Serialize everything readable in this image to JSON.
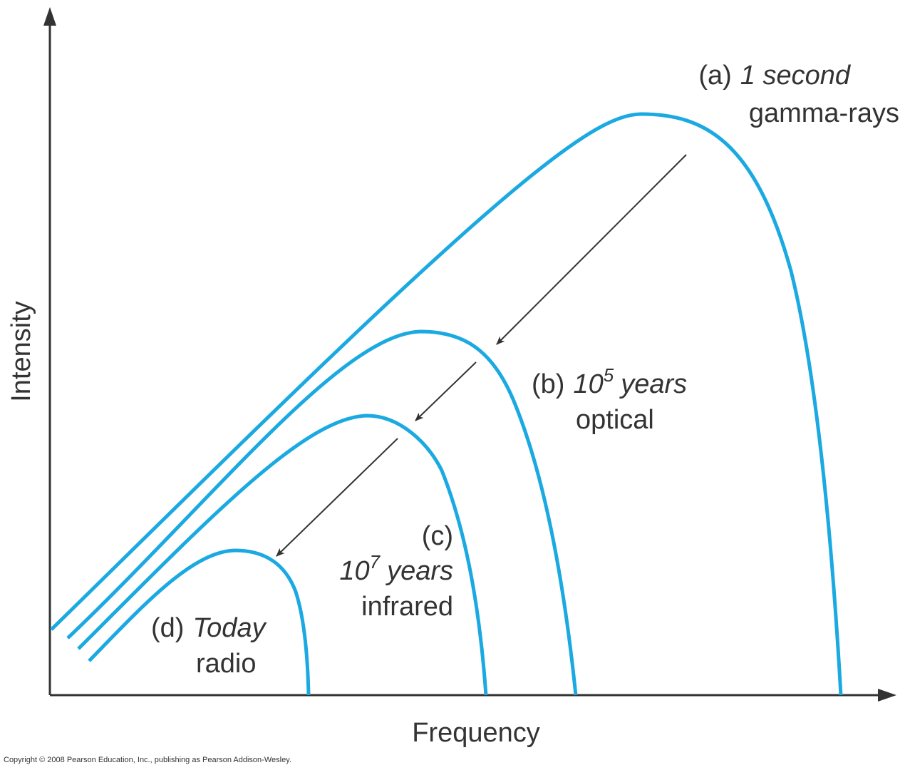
{
  "axes": {
    "x_label": "Frequency",
    "y_label": "Intensity"
  },
  "curves": [
    {
      "tag": "(a)",
      "time": {
        "text": "1 second"
      },
      "band": "gamma-rays"
    },
    {
      "tag": "(b)",
      "time": {
        "base": "10",
        "exp": "5",
        "unit": "years"
      },
      "band": "optical"
    },
    {
      "tag": "(c)",
      "time": {
        "base": "10",
        "exp": "7",
        "unit": "years"
      },
      "band": "infrared"
    },
    {
      "tag": "(d)",
      "time": {
        "text": "Today"
      },
      "band": "radio"
    }
  ],
  "copyright": "Copyright © 2008 Pearson Education, Inc., publishing as Pearson Addison-Wesley."
}
